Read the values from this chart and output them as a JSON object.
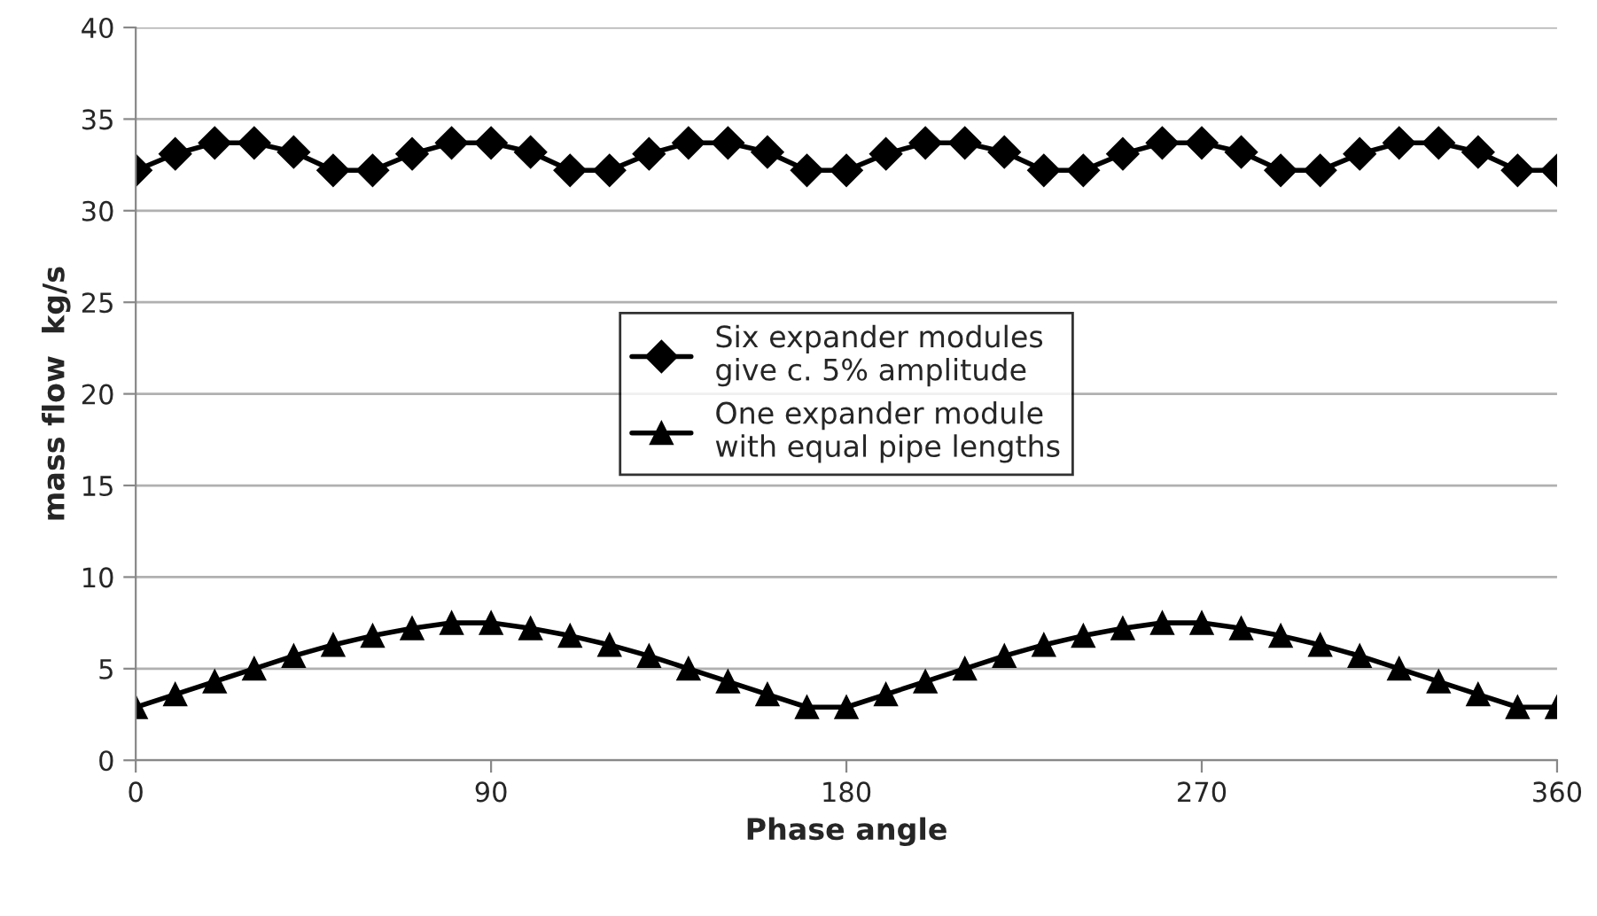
{
  "chart_data": {
    "type": "line",
    "xlabel": "Phase angle",
    "ylabel": "mass flow  kg/s",
    "x": [
      0,
      10,
      20,
      30,
      40,
      50,
      60,
      70,
      80,
      90,
      100,
      110,
      120,
      130,
      140,
      150,
      160,
      170,
      180,
      190,
      200,
      210,
      220,
      230,
      240,
      250,
      260,
      270,
      280,
      290,
      300,
      310,
      320,
      330,
      340,
      350,
      360
    ],
    "series": [
      {
        "name": "Six expander modules\ngive c. 5% amplitude",
        "color": "#000000",
        "marker": "diamond",
        "values": [
          32.2,
          33.1,
          33.7,
          33.7,
          33.2,
          32.2,
          32.2,
          33.1,
          33.7,
          33.7,
          33.2,
          32.2,
          32.2,
          33.1,
          33.7,
          33.7,
          33.2,
          32.2,
          32.2,
          33.1,
          33.7,
          33.7,
          33.2,
          32.2,
          32.2,
          33.1,
          33.7,
          33.7,
          33.2,
          32.2,
          32.2,
          33.1,
          33.7,
          33.7,
          33.2,
          32.2,
          32.2
        ]
      },
      {
        "name": "One expander module\nwith equal pipe lengths",
        "color": "#000000",
        "marker": "triangle",
        "values": [
          2.9,
          3.6,
          4.3,
          5.0,
          5.7,
          6.3,
          6.8,
          7.2,
          7.5,
          7.5,
          7.2,
          6.8,
          6.3,
          5.7,
          5.0,
          4.3,
          3.6,
          2.9,
          2.9,
          3.6,
          4.3,
          5.0,
          5.7,
          6.3,
          6.8,
          7.2,
          7.5,
          7.5,
          7.2,
          6.8,
          6.3,
          5.7,
          5.0,
          4.3,
          3.6,
          2.9,
          2.9
        ]
      }
    ],
    "xlim": [
      0,
      360
    ],
    "xticks": [
      0,
      90,
      180,
      270,
      360
    ],
    "ylim": [
      0,
      40
    ],
    "yticks": [
      0,
      5,
      10,
      15,
      20,
      25,
      30,
      35,
      40
    ],
    "grid": "y",
    "legend": "center",
    "line_style": "solid"
  }
}
